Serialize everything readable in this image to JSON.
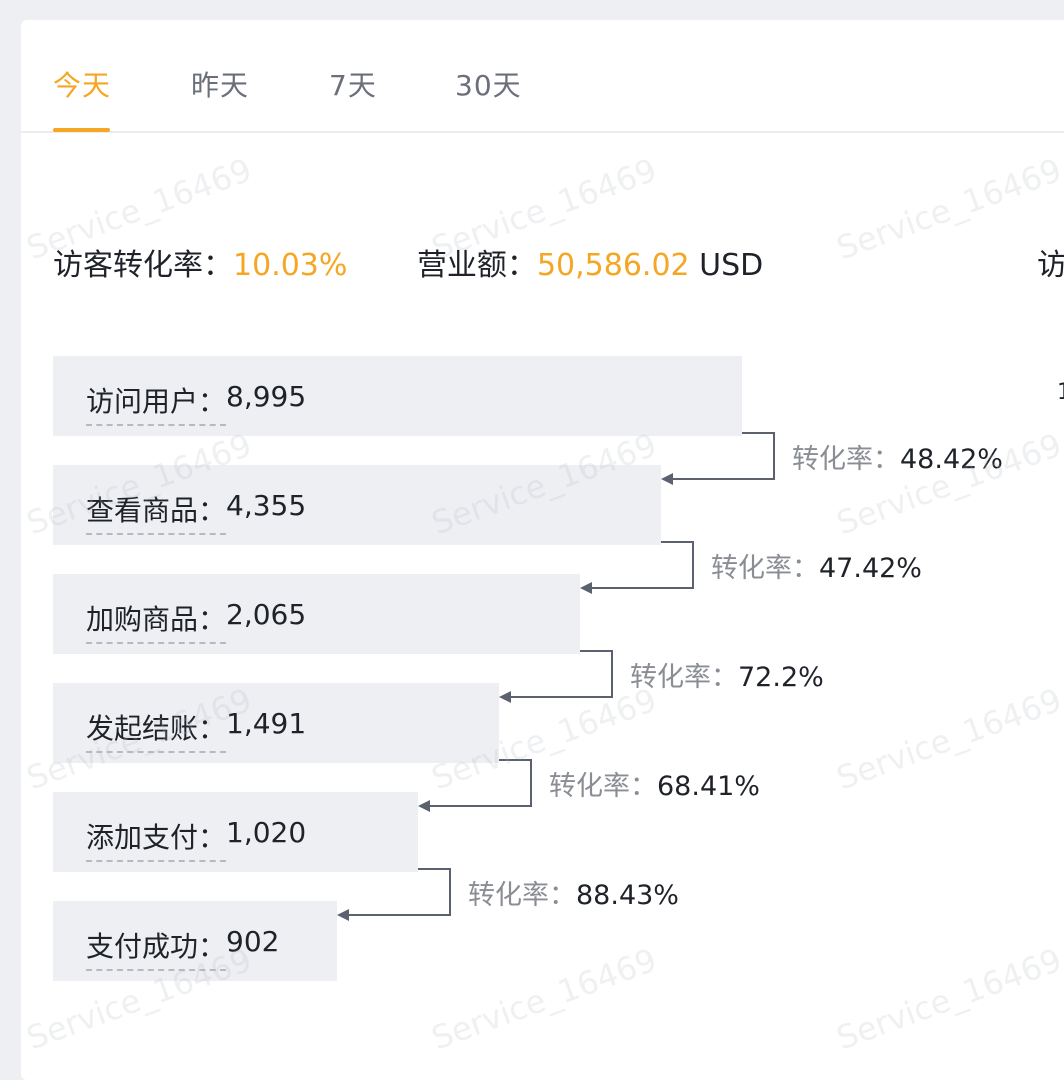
{
  "tabs": [
    "今天",
    "昨天",
    "7天",
    "30天"
  ],
  "active_tab": 0,
  "summary": {
    "conv_label": "访客转化率：",
    "conv_value": "10.03%",
    "revenue_label": "营业额：",
    "revenue_value": "50,586.02",
    "revenue_currency": "USD",
    "cut_text": "访",
    "stub_text": "1"
  },
  "funnel": [
    {
      "name": "访问用户",
      "value": "8,995"
    },
    {
      "name": "查看商品",
      "value": "4,355"
    },
    {
      "name": "加购商品",
      "value": "2,065"
    },
    {
      "name": "发起结账",
      "value": "1,491"
    },
    {
      "name": "添加支付",
      "value": "1,020"
    },
    {
      "name": "支付成功",
      "value": "902"
    }
  ],
  "conversions": [
    {
      "label": "转化率：",
      "value": "48.42%"
    },
    {
      "label": "转化率：",
      "value": "47.42%"
    },
    {
      "label": "转化率：",
      "value": "72.2%"
    },
    {
      "label": "转化率：",
      "value": "68.41%"
    },
    {
      "label": "转化率：",
      "value": "88.43%"
    }
  ],
  "watermark": "Service_16469",
  "colors": {
    "accent": "#f5a623",
    "bar": "#eeeff3",
    "connector": "#5c6170"
  }
}
